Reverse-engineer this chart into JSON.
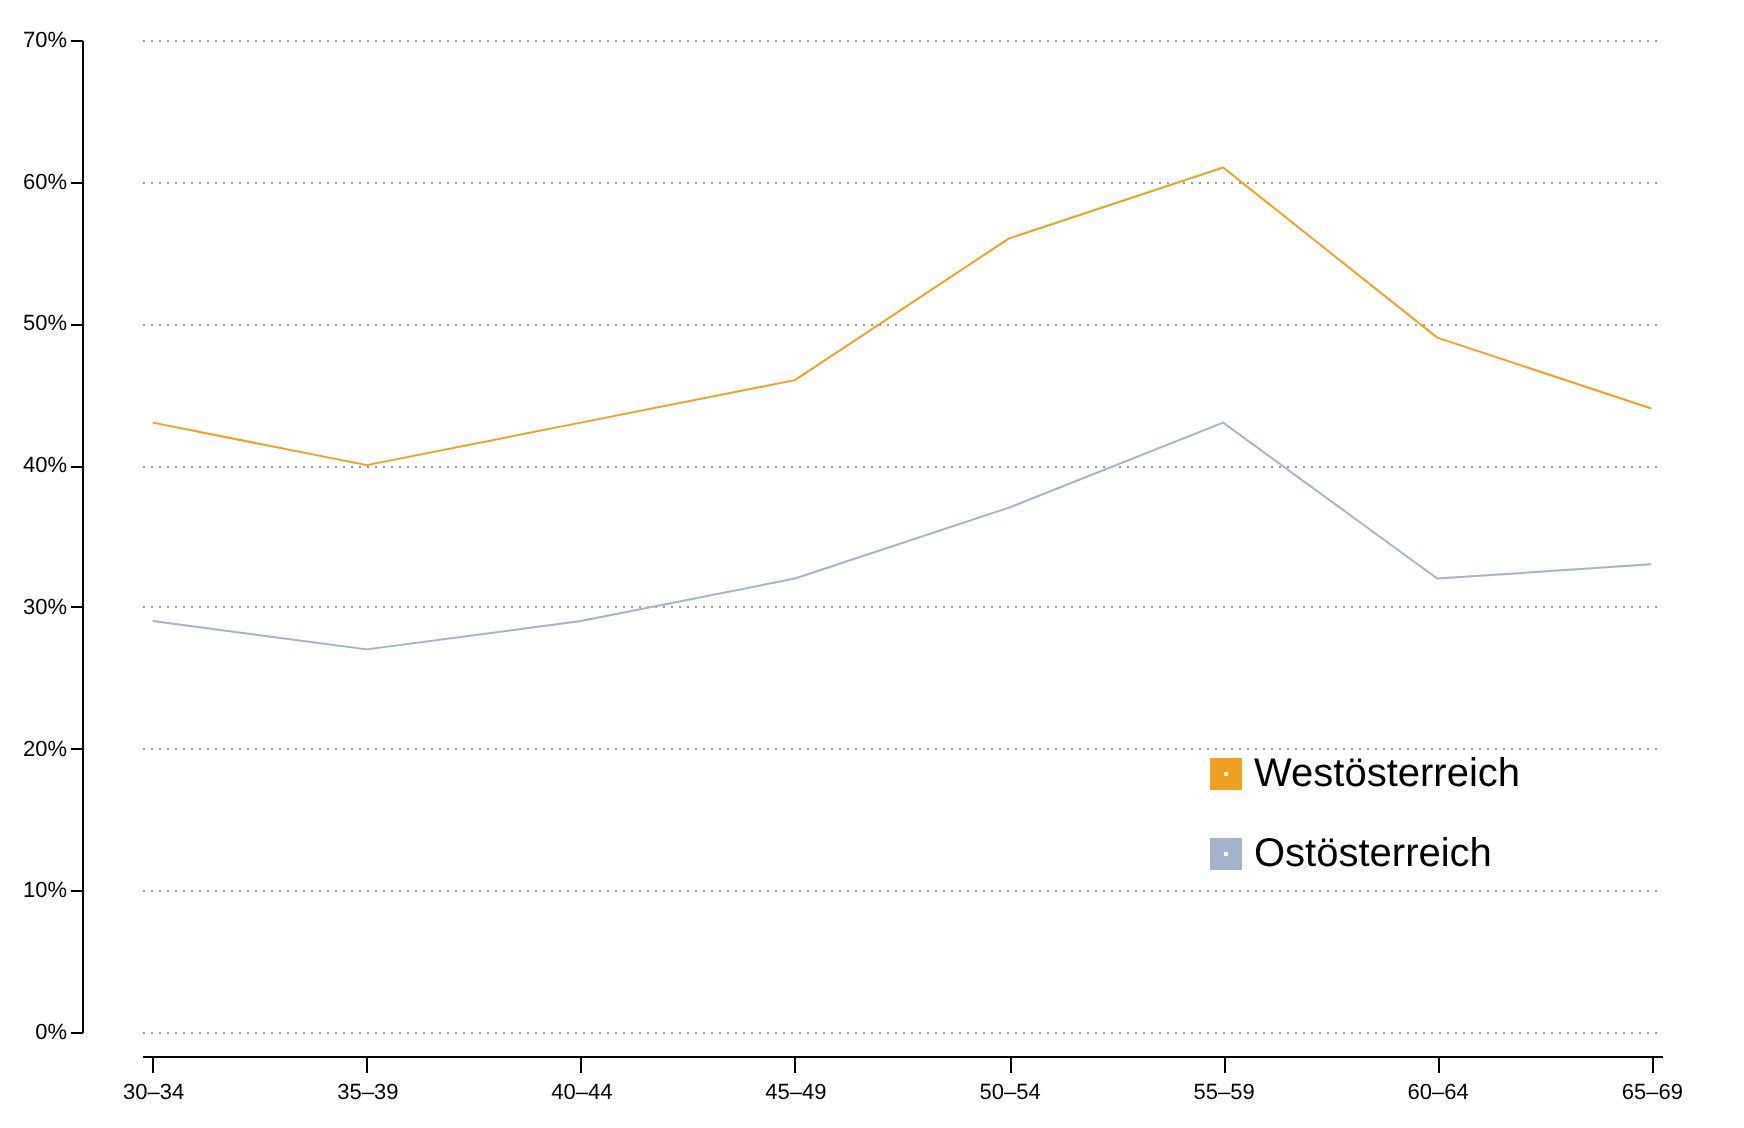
{
  "chart_data": {
    "type": "line",
    "categories": [
      "30–34",
      "35–39",
      "40–44",
      "45–49",
      "50–54",
      "55–59",
      "60–64",
      "65–69"
    ],
    "series": [
      {
        "name": "Westösterreich",
        "color": "#f0a020",
        "values": [
          43,
          40,
          43,
          46,
          56,
          61,
          49,
          44
        ]
      },
      {
        "name": "Ostösterreich",
        "color": "#a3b3c9",
        "values": [
          29,
          27,
          29,
          32,
          37,
          43,
          32,
          33
        ]
      }
    ],
    "ylim": [
      0,
      70
    ],
    "yticks": [
      {
        "value": 0,
        "label": "0%"
      },
      {
        "value": 10,
        "label": "10%"
      },
      {
        "value": 20,
        "label": "20%"
      },
      {
        "value": 30,
        "label": "30%"
      },
      {
        "value": 40,
        "label": "40%"
      },
      {
        "value": 50,
        "label": "50%"
      },
      {
        "value": 60,
        "label": "60%"
      },
      {
        "value": 70,
        "label": "70%"
      }
    ],
    "grid": "y",
    "legend": "bottom right",
    "marker": "none",
    "line_style": "solid"
  }
}
